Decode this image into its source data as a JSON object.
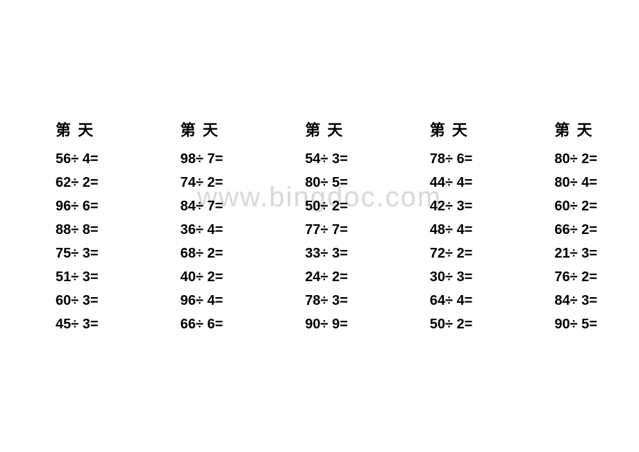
{
  "watermark_text": "www.bingdoc.com",
  "header_text": "第   天",
  "columns": [
    {
      "problems": [
        "56÷ 4=",
        "62÷ 2=",
        "96÷ 6=",
        "88÷ 8=",
        "75÷ 3=",
        "51÷ 3=",
        "60÷ 3=",
        "45÷ 3="
      ]
    },
    {
      "problems": [
        "98÷ 7=",
        "74÷ 2=",
        "84÷ 7=",
        "36÷ 4=",
        "68÷ 2=",
        "40÷ 2=",
        "96÷ 4=",
        "66÷ 6="
      ]
    },
    {
      "problems": [
        "54÷ 3=",
        "80÷ 5=",
        "50÷ 2=",
        "77÷ 7=",
        "33÷ 3=",
        "24÷ 2=",
        "78÷ 3=",
        "90÷ 9="
      ]
    },
    {
      "problems": [
        "78÷ 6=",
        "44÷ 4=",
        "42÷ 3=",
        "48÷ 4=",
        "72÷ 2=",
        "30÷ 3=",
        "64÷ 4=",
        "50÷ 2="
      ]
    },
    {
      "problems": [
        "80÷ 2=",
        "80÷ 4=",
        "60÷ 2=",
        "66÷ 2=",
        "21÷ 3=",
        "76÷ 2=",
        "84÷ 3=",
        "90÷ 5="
      ]
    }
  ],
  "styling": {
    "background_color": "#ffffff",
    "text_color": "#000000",
    "watermark_color": "rgba(200,200,200,0.7)",
    "header_fontsize": 22,
    "problem_fontsize": 20,
    "watermark_fontsize": 40,
    "font_weight": "bold",
    "line_height": 1.7,
    "columns_count": 5,
    "problems_per_column": 8
  }
}
